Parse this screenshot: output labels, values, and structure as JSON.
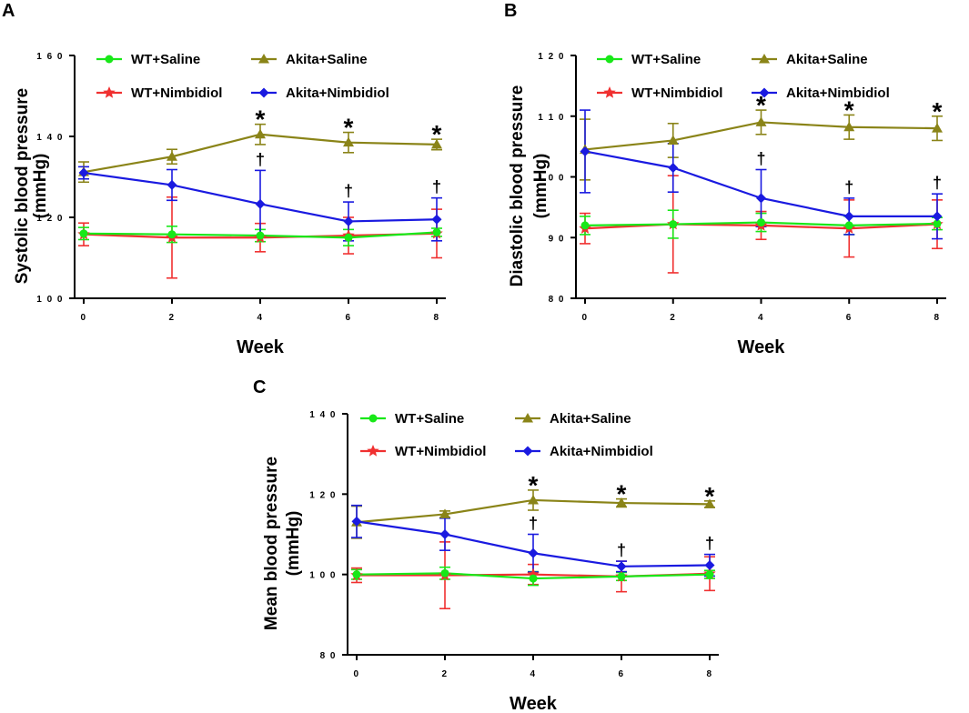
{
  "figure": {
    "colors": {
      "wt_saline": "#18e818",
      "wt_nimbidiol": "#f03030",
      "akita_saline": "#8a8418",
      "akita_nimbidiol": "#1a1ae0"
    }
  },
  "chart_data": [
    {
      "panel": "A",
      "type": "line",
      "title": "",
      "xlabel": "Week",
      "ylabel": [
        "Systolic blood pressure",
        "(mmHg)"
      ],
      "x": [
        0,
        2,
        4,
        6,
        8
      ],
      "xlim": [
        0,
        8
      ],
      "ylim": [
        100,
        160
      ],
      "yticks": [
        100,
        120,
        140,
        160
      ],
      "ytick_labels": [
        "1 0 0",
        "1 2 0",
        "1 4 0",
        "1 6 0"
      ],
      "legend": [
        "WT+Saline",
        "Akita+Saline",
        "WT+Nimbidiol",
        "Akita+Nimbidiol"
      ],
      "series": [
        {
          "key": "wt_saline",
          "name": "WT+Saline",
          "marker": "circle",
          "values": [
            116,
            115.8,
            115.5,
            115,
            116.3
          ],
          "err": [
            1.5,
            2,
            1.5,
            2,
            1
          ]
        },
        {
          "key": "wt_nimbidiol",
          "name": "WT+Nimbidiol",
          "marker": "star",
          "values": [
            115.8,
            115,
            115,
            115.5,
            116
          ],
          "err": [
            2.8,
            10,
            3.5,
            4.5,
            6
          ]
        },
        {
          "key": "akita_saline",
          "name": "Akita+Saline",
          "marker": "triangle",
          "values": [
            131.2,
            135,
            140.5,
            138.5,
            138
          ],
          "err": [
            2.5,
            1.8,
            2.5,
            2.5,
            1.3
          ]
        },
        {
          "key": "akita_nimbidiol",
          "name": "Akita+Nimbidiol",
          "marker": "diamond",
          "values": [
            131,
            128,
            123.3,
            119,
            119.5
          ],
          "err": [
            1.5,
            3.8,
            8.3,
            4.8,
            5.3
          ]
        }
      ],
      "annotations": {
        "star": [
          4,
          6,
          8
        ],
        "dagger": [
          4,
          6,
          8
        ]
      }
    },
    {
      "panel": "B",
      "type": "line",
      "title": "",
      "xlabel": "Week",
      "ylabel": [
        "Diastolic blood pressure",
        "(mmHg)"
      ],
      "x": [
        0,
        2,
        4,
        6,
        8
      ],
      "xlim": [
        0,
        8
      ],
      "ylim": [
        80,
        120
      ],
      "yticks": [
        80,
        90,
        100,
        110,
        120
      ],
      "ytick_labels": [
        "8 0",
        "9 0",
        "1 0 0",
        "1 1 0",
        "1 2 0"
      ],
      "legend": [
        "WT+Saline",
        "Akita+Saline",
        "WT+Nimbidiol",
        "Akita+Nimbidiol"
      ],
      "series": [
        {
          "key": "wt_saline",
          "name": "WT+Saline",
          "marker": "circle",
          "values": [
            92,
            92.2,
            92.5,
            92,
            92.3
          ],
          "err": [
            1.5,
            2.3,
            1.5,
            1.5,
            1
          ]
        },
        {
          "key": "wt_nimbidiol",
          "name": "WT+Nimbidiol",
          "marker": "star",
          "values": [
            91.5,
            92.2,
            92,
            91.5,
            92.2
          ],
          "err": [
            2.5,
            8,
            2.3,
            4.7,
            4
          ]
        },
        {
          "key": "akita_saline",
          "name": "Akita+Saline",
          "marker": "triangle",
          "values": [
            104.5,
            106,
            109,
            108.2,
            108
          ],
          "err": [
            5,
            2.8,
            2,
            2,
            2
          ]
        },
        {
          "key": "akita_nimbidiol",
          "name": "Akita+Nimbidiol",
          "marker": "diamond",
          "values": [
            104.2,
            101.5,
            96.5,
            93.5,
            93.5
          ],
          "err": [
            6.8,
            4,
            4.7,
            3,
            3.7
          ]
        }
      ],
      "annotations": {
        "star": [
          4,
          6,
          8
        ],
        "dagger": [
          4,
          6,
          8
        ]
      }
    },
    {
      "panel": "C",
      "type": "line",
      "title": "",
      "xlabel": "Week",
      "ylabel": [
        "Mean blood pressure",
        "(mmHg)"
      ],
      "x": [
        0,
        2,
        4,
        6,
        8
      ],
      "xlim": [
        0,
        8
      ],
      "ylim": [
        80,
        140
      ],
      "yticks": [
        80,
        100,
        120,
        140
      ],
      "ytick_labels": [
        "8 0",
        "1 0 0",
        "1 2 0",
        "1 4 0"
      ],
      "legend": [
        "WT+Saline",
        "Akita+Saline",
        "WT+Nimbidiol",
        "Akita+Nimbidiol"
      ],
      "series": [
        {
          "key": "wt_saline",
          "name": "WT+Saline",
          "marker": "circle",
          "values": [
            100,
            100.3,
            99,
            99.5,
            100
          ],
          "err": [
            1.2,
            1.5,
            1.7,
            1,
            1
          ]
        },
        {
          "key": "wt_nimbidiol",
          "name": "WT+Nimbidiol",
          "marker": "star",
          "values": [
            99.8,
            99.8,
            100,
            99.5,
            100.2
          ],
          "err": [
            1.8,
            8.3,
            2.5,
            3.8,
            4.2
          ]
        },
        {
          "key": "akita_saline",
          "name": "Akita+Saline",
          "marker": "triangle",
          "values": [
            113,
            115,
            118.5,
            117.8,
            117.5
          ],
          "err": [
            4,
            0.8,
            2.5,
            1,
            0.8
          ]
        },
        {
          "key": "akita_nimbidiol",
          "name": "Akita+Nimbidiol",
          "marker": "diamond",
          "values": [
            113.2,
            110,
            105.3,
            102,
            102.3
          ],
          "err": [
            4,
            4,
            4.7,
            1.3,
            2.7
          ]
        }
      ],
      "annotations": {
        "star": [
          4,
          6,
          8
        ],
        "dagger": [
          4,
          6,
          8
        ]
      }
    }
  ]
}
